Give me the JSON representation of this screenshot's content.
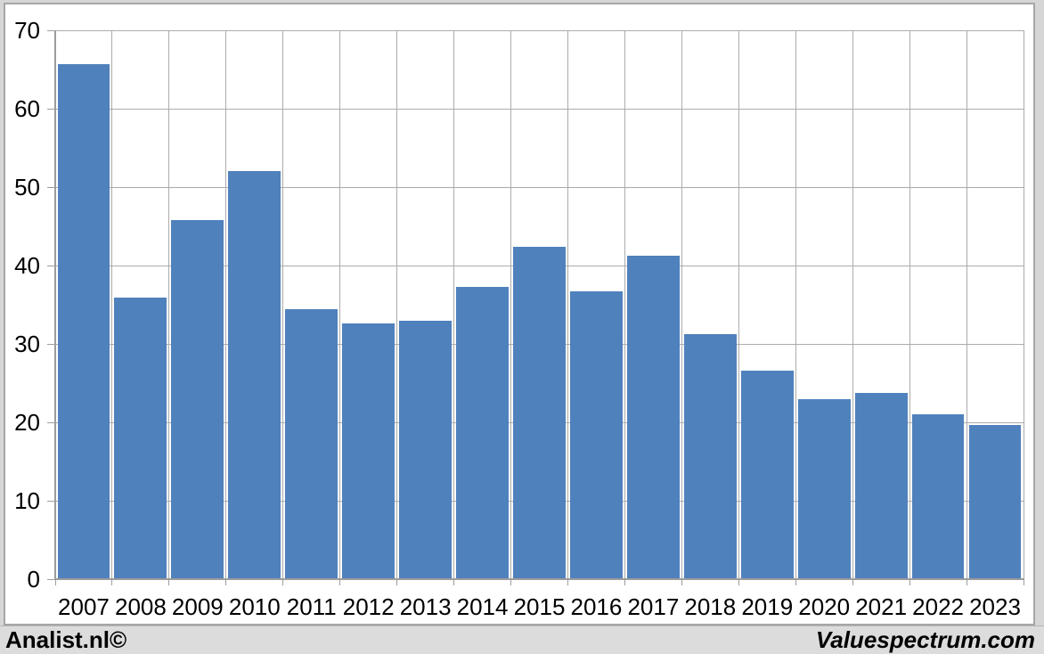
{
  "footer": {
    "left_text": "Analist.nl©",
    "right_text": "Valuespectrum.com"
  },
  "colors": {
    "bar": "#4F81BD",
    "gridline": "#ABABAB",
    "axis": "#9C9C9C",
    "panel_border": "#A6A6A6",
    "footer_bg": "#DCDCDC",
    "page_bg": "#D6D6D6",
    "plot_bg": "#FFFFFF",
    "text": "#000000"
  },
  "chart_data": {
    "type": "bar",
    "title": "",
    "xlabel": "",
    "ylabel": "",
    "categories": [
      "2007",
      "2008",
      "2009",
      "2010",
      "2011",
      "2012",
      "2013",
      "2014",
      "2015",
      "2016",
      "2017",
      "2018",
      "2019",
      "2020",
      "2021",
      "2022",
      "2023"
    ],
    "values": [
      65.7,
      35.9,
      45.8,
      52.0,
      34.4,
      32.6,
      32.9,
      37.3,
      42.4,
      36.7,
      41.3,
      31.2,
      26.6,
      23.0,
      23.8,
      21.0,
      19.7
    ],
    "ylim": [
      0,
      70
    ],
    "yticks": [
      0,
      10,
      20,
      30,
      40,
      50,
      60,
      70
    ],
    "grid": true,
    "legend": false,
    "bar_gap_fraction": 0.08
  }
}
